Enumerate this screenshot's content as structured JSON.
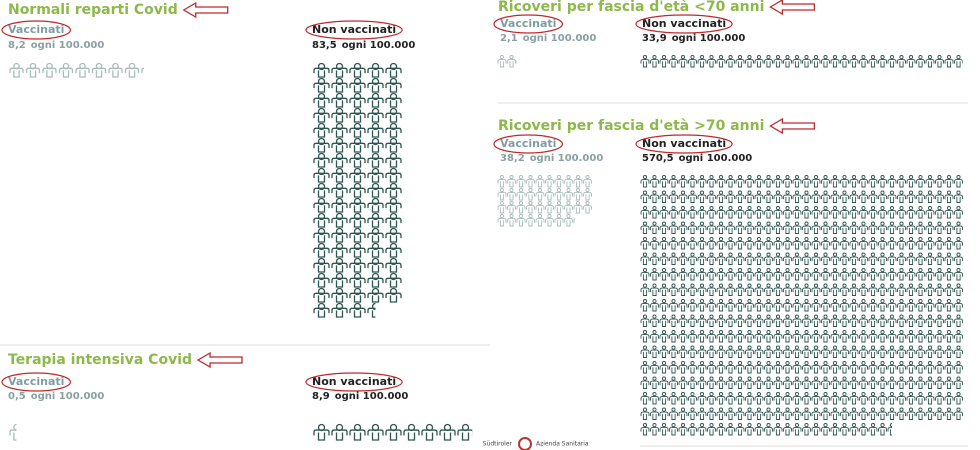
{
  "panels": [
    {
      "title": "Normali reparti Covid",
      "groups": [
        {
          "label": "Vaccinati",
          "rate": {
            "value": 8.2,
            "label": "8,2"
          },
          "unit": "ogni 100.000"
        },
        {
          "label": "Non vaccinati",
          "rate": {
            "value": 83.5,
            "label": "83,5"
          },
          "unit": "ogni 100.000"
        }
      ]
    },
    {
      "title": "Terapia intensiva Covid",
      "groups": [
        {
          "label": "Vaccinati",
          "rate": {
            "value": 0.5,
            "label": "0,5"
          },
          "unit": "ogni 100.000"
        },
        {
          "label": "Non vaccinati",
          "rate": {
            "value": 8.9,
            "label": "8,9"
          },
          "unit": "ogni 100.000"
        }
      ]
    },
    {
      "title": "Ricoveri per fascia d'età <70 anni",
      "groups": [
        {
          "label": "Vaccinati",
          "rate": {
            "value": 2.1,
            "label": "2,1"
          },
          "unit": "ogni 100.000"
        },
        {
          "label": "Non vaccinati",
          "rate": {
            "value": 33.9,
            "label": "33,9"
          },
          "unit": "ogni 100.000"
        }
      ]
    },
    {
      "title": "Ricoveri per fascia d'età >70 anni",
      "groups": [
        {
          "label": "Vaccinati",
          "rate": {
            "value": 38.2,
            "label": "38,2"
          },
          "unit": "ogni 100.000"
        },
        {
          "label": "Non vaccinati",
          "rate": {
            "value": 570.5,
            "label": "570,5"
          },
          "unit": "ogni 100.000"
        }
      ]
    }
  ],
  "footer": {
    "logo_left": "Südtiroler",
    "logo_right": "Azienda Sanitaria"
  }
}
